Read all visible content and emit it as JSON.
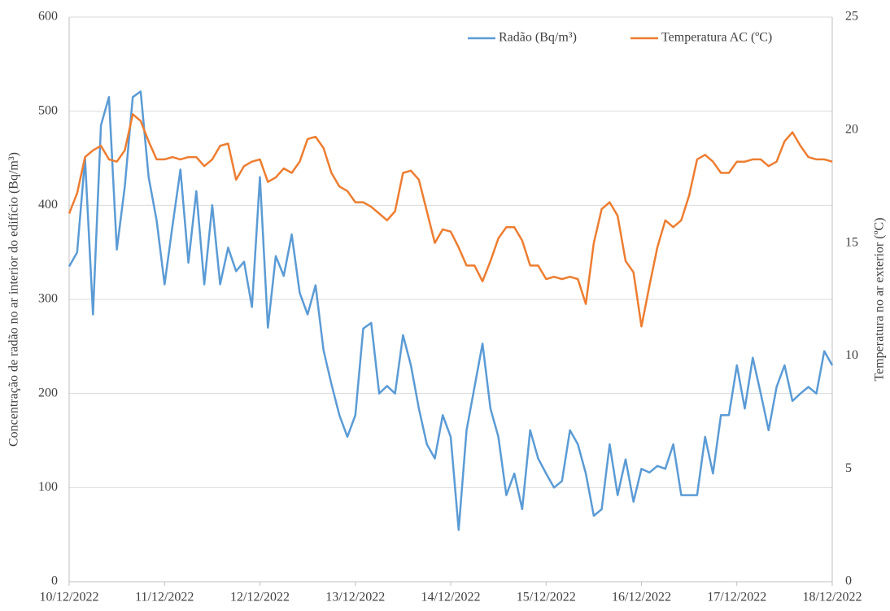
{
  "chart_data": {
    "type": "line",
    "y_label": "Concentração de radão no ar interior do edifício (Bq/m³)",
    "y2_label": "Temperatura no ar exterior (ºC)",
    "categories": [
      "10/12/2022",
      null,
      null,
      null,
      null,
      null,
      null,
      null,
      null,
      null,
      null,
      null,
      "11/12/2022",
      null,
      null,
      null,
      null,
      null,
      null,
      null,
      null,
      null,
      null,
      null,
      "12/12/2022",
      null,
      null,
      null,
      null,
      null,
      null,
      null,
      null,
      null,
      null,
      null,
      "13/12/2022",
      null,
      null,
      null,
      null,
      null,
      null,
      null,
      null,
      null,
      null,
      null,
      "14/12/2022",
      null,
      null,
      null,
      null,
      null,
      null,
      null,
      null,
      null,
      null,
      null,
      "15/12/2022",
      null,
      null,
      null,
      null,
      null,
      null,
      null,
      null,
      null,
      null,
      null,
      "16/12/2022",
      null,
      null,
      null,
      null,
      null,
      null,
      null,
      null,
      null,
      null,
      null,
      "17/12/2022",
      null,
      null,
      null,
      null,
      null,
      null,
      null,
      null,
      null,
      null,
      null,
      "18/12/2022"
    ],
    "series": [
      {
        "name": "Radão (Bq/m³)",
        "color": "#5b9bd5",
        "values": [
          335,
          350,
          450,
          284,
          485,
          515,
          353,
          420,
          515,
          521,
          430,
          384,
          316,
          378,
          438,
          339,
          415,
          316,
          400,
          316,
          355,
          330,
          340,
          292,
          430,
          270,
          346,
          325,
          369,
          307,
          284,
          315,
          246,
          210,
          177,
          154,
          177,
          269,
          275,
          200,
          208,
          200,
          262,
          230,
          184,
          146,
          131,
          177,
          154,
          55,
          161,
          207,
          253,
          184,
          154,
          92,
          115,
          77,
          161,
          131,
          115,
          100,
          107,
          161,
          146,
          115,
          70,
          77,
          146,
          92,
          130,
          85,
          120,
          116,
          123,
          120,
          146,
          92,
          92,
          92,
          154,
          115,
          177,
          177,
          230,
          184,
          238,
          200,
          161,
          207,
          230,
          192,
          200,
          207,
          200,
          245,
          230
        ]
      },
      {
        "name": "Temperatura AC (ºC)",
        "color": "#ed7d31",
        "axis": "y2",
        "values": [
          16.3,
          17.2,
          18.8,
          19.1,
          19.3,
          18.7,
          18.6,
          19.1,
          20.7,
          20.4,
          19.5,
          18.7,
          18.7,
          18.8,
          18.7,
          18.8,
          18.8,
          18.4,
          18.7,
          19.3,
          19.4,
          17.8,
          18.4,
          18.6,
          18.7,
          17.7,
          17.9,
          18.3,
          18.1,
          18.6,
          19.6,
          19.7,
          19.2,
          18.1,
          17.5,
          17.3,
          16.8,
          16.8,
          16.6,
          16.3,
          16.0,
          16.4,
          18.1,
          18.2,
          17.8,
          16.4,
          15.0,
          15.6,
          15.5,
          14.8,
          14.0,
          14.0,
          13.3,
          14.2,
          15.2,
          15.7,
          15.7,
          15.1,
          14.0,
          14.0,
          13.4,
          13.5,
          13.4,
          13.5,
          13.4,
          12.3,
          15.0,
          16.5,
          16.8,
          16.2,
          14.2,
          13.7,
          11.3,
          13.1,
          14.8,
          16.0,
          15.7,
          16.0,
          17.1,
          18.7,
          18.9,
          18.6,
          18.1,
          18.1,
          18.6,
          18.6,
          18.7,
          18.7,
          18.4,
          18.6,
          19.5,
          19.9,
          19.3,
          18.8,
          18.7,
          18.7,
          18.6
        ]
      }
    ],
    "ylim": [
      0,
      600
    ],
    "yticks": [
      0,
      100,
      200,
      300,
      400,
      500,
      600
    ],
    "y2lim": [
      0,
      25
    ],
    "y2ticks": [
      0,
      5,
      10,
      15,
      20,
      25
    ],
    "grid": true,
    "legend": "top-right"
  }
}
